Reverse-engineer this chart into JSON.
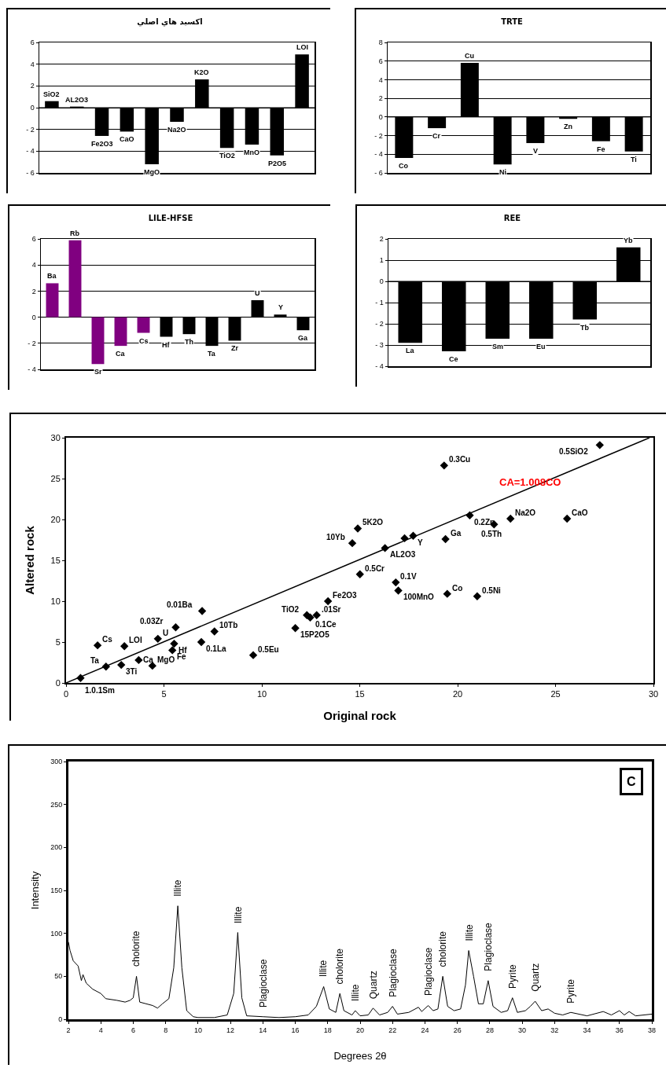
{
  "chart_data": [
    {
      "type": "bar",
      "title": "اكسيد هاي اصلي",
      "categories": [
        "SiO2",
        "AL2O3",
        "Fe2O3",
        "CaO",
        "MgO",
        "Na2O",
        "K2O",
        "TiO2",
        "MnO",
        "P2O5",
        "LOI"
      ],
      "values": [
        0.6,
        0.1,
        -2.6,
        -2.2,
        -5.2,
        -1.3,
        2.6,
        -3.7,
        -3.4,
        -4.4,
        4.9
      ],
      "color": "#000000",
      "ylim": [
        -6,
        6
      ],
      "yticks": [
        {
          "value": -6,
          "label": "- 6"
        },
        {
          "value": -4,
          "label": "- 4"
        },
        {
          "value": -2,
          "label": "- 2"
        },
        0,
        2,
        4,
        6
      ],
      "grid": "y"
    },
    {
      "type": "bar",
      "title": "TRTE",
      "categories": [
        "Co",
        "Cr",
        "Cu",
        "Ni",
        "V",
        "Zn",
        "Fe",
        "Ti"
      ],
      "values": [
        -4.4,
        -1.2,
        5.8,
        -5.1,
        -2.8,
        -0.2,
        -2.6,
        -3.7
      ],
      "color": "#000000",
      "ylim": [
        -6,
        8
      ],
      "yticks": [
        {
          "value": -6,
          "label": "- 6"
        },
        {
          "value": -4,
          "label": "- 4"
        },
        {
          "value": -2,
          "label": "- 2"
        },
        0,
        2,
        4,
        6,
        8
      ],
      "grid": "y"
    },
    {
      "type": "bar",
      "title": "LILE-HFSE",
      "categories": [
        "Ba",
        "Rb",
        "Sr",
        "Ca",
        "Cs",
        "Hf",
        "Th",
        "Ta",
        "Zr",
        "U",
        "Y",
        "Ga"
      ],
      "values": [
        2.6,
        5.9,
        -3.6,
        -2.2,
        -1.2,
        -1.5,
        -1.3,
        -2.2,
        -1.8,
        1.3,
        0.2,
        -1.0
      ],
      "colors": [
        "#800080",
        "#800080",
        "#800080",
        "#800080",
        "#800080",
        "#000000",
        "#000000",
        "#000000",
        "#000000",
        "#000000",
        "#000000",
        "#000000"
      ],
      "ylim": [
        -4,
        6
      ],
      "yticks": [
        {
          "value": -4,
          "label": "- 4"
        },
        {
          "value": -2,
          "label": "- 2"
        },
        0,
        2,
        4,
        6
      ],
      "grid": "y"
    },
    {
      "type": "bar",
      "title": "REE",
      "categories": [
        "La",
        "Ce",
        "Sm",
        "Eu",
        "Tb",
        "Yb"
      ],
      "values": [
        -2.9,
        -3.3,
        -2.7,
        -2.7,
        -1.8,
        1.6
      ],
      "color": "#000000",
      "ylim": [
        -4,
        2
      ],
      "yticks": [
        {
          "value": -4,
          "label": "- 4"
        },
        {
          "value": -3,
          "label": "- 3"
        },
        {
          "value": -2,
          "label": "- 2"
        },
        {
          "value": -1,
          "label": "- 1"
        },
        0,
        1,
        2
      ],
      "grid": "y"
    },
    {
      "type": "scatter",
      "xlabel": "Original rock",
      "ylabel": "Altered rock",
      "xlim": [
        0,
        30
      ],
      "ylim": [
        0,
        30
      ],
      "xticks": [
        0,
        5,
        10,
        15,
        20,
        25,
        30
      ],
      "yticks": [
        0,
        5,
        10,
        15,
        20,
        25,
        30
      ],
      "grid": false,
      "marker": "diamond",
      "series": [
        {
          "type": "scatter",
          "color": "#000000",
          "x": [
            0.74,
            2.04,
            2.82,
            3.71,
            4.41,
            1.61,
            2.98,
            4.69,
            5.6,
            5.52,
            5.43,
            6.91,
            6.95,
            7.58,
            9.56,
            11.71,
            12.3,
            12.47,
            12.8,
            13.38,
            15.01,
            14.62,
            14.9,
            16.29,
            17.29,
            17.73,
            16.84,
            16.97,
            19.38,
            19.31,
            19.47,
            20.62,
            21.0,
            21.86,
            22.7,
            25.59,
            27.26
          ],
          "values": [
            0.6,
            2.0,
            2.2,
            2.8,
            2.1,
            4.6,
            4.5,
            5.4,
            6.8,
            4.8,
            4.0,
            5.0,
            8.8,
            6.3,
            3.4,
            6.7,
            8.3,
            8.0,
            8.3,
            10.0,
            13.3,
            17.1,
            18.9,
            16.5,
            17.7,
            18.0,
            12.3,
            11.3,
            17.6,
            26.6,
            10.9,
            20.5,
            10.6,
            19.4,
            20.1,
            20.1,
            29.1
          ]
        },
        {
          "type": "line",
          "color": "#000000",
          "line_style": "solid",
          "marker": "none",
          "x": [
            0,
            29.8
          ],
          "values": [
            0,
            30
          ]
        }
      ],
      "annotations": [
        {
          "text": "1.0.1Sm",
          "x": 0.74,
          "y": 0.6
        },
        {
          "text": "Ta",
          "x": 2.04,
          "y": 2.0
        },
        {
          "text": "3Ti",
          "x": 2.82,
          "y": 2.2
        },
        {
          "text": "Ca",
          "x": 3.71,
          "y": 2.8
        },
        {
          "text": "MgO",
          "x": 4.41,
          "y": 2.1
        },
        {
          "text": "Cs",
          "x": 1.61,
          "y": 4.6
        },
        {
          "text": "LOI",
          "x": 2.98,
          "y": 4.5
        },
        {
          "text": "U",
          "x": 4.69,
          "y": 5.4
        },
        {
          "text": "0.03Zr",
          "x": 5.6,
          "y": 6.8
        },
        {
          "text": "Hf",
          "x": 5.52,
          "y": 4.8
        },
        {
          "text": "Fe",
          "x": 5.43,
          "y": 4.0
        },
        {
          "text": "0.1La",
          "x": 6.91,
          "y": 5.0
        },
        {
          "text": "0.01Ba",
          "x": 6.95,
          "y": 8.8
        },
        {
          "text": "10Tb",
          "x": 7.58,
          "y": 6.3
        },
        {
          "text": "0.5Eu",
          "x": 9.56,
          "y": 3.4
        },
        {
          "text": "15P2O5",
          "x": 11.71,
          "y": 6.7
        },
        {
          "text": "TiO2",
          "x": 12.3,
          "y": 8.3
        },
        {
          "text": "0.1Ce",
          "x": 12.47,
          "y": 8.0
        },
        {
          "text": ".01Sr",
          "x": 12.8,
          "y": 8.3
        },
        {
          "text": "Fe2O3",
          "x": 13.38,
          "y": 10.0
        },
        {
          "text": "0.5Cr",
          "x": 15.01,
          "y": 13.3
        },
        {
          "text": "10Yb",
          "x": 14.62,
          "y": 17.1
        },
        {
          "text": "5K2O",
          "x": 14.9,
          "y": 18.9
        },
        {
          "text": "AL2O3",
          "x": 16.29,
          "y": 16.5
        },
        {
          "text": "Y",
          "x": 17.73,
          "y": 18.0
        },
        {
          "text": "0.1V",
          "x": 16.84,
          "y": 12.3
        },
        {
          "text": "100MnO",
          "x": 16.97,
          "y": 11.3
        },
        {
          "text": "Ga",
          "x": 19.38,
          "y": 17.6
        },
        {
          "text": "0.3Cu",
          "x": 19.31,
          "y": 26.6
        },
        {
          "text": "Co",
          "x": 19.47,
          "y": 10.9
        },
        {
          "text": "0.2Zn",
          "x": 20.62,
          "y": 20.5
        },
        {
          "text": "0.5Ni",
          "x": 21.0,
          "y": 10.6
        },
        {
          "text": "0.5Th",
          "x": 21.86,
          "y": 19.4
        },
        {
          "text": "Na2O",
          "x": 22.7,
          "y": 20.1
        },
        {
          "text": "CaO",
          "x": 25.59,
          "y": 20.1
        },
        {
          "text": "0.5SiO2",
          "x": 27.26,
          "y": 29.1
        },
        "CA=1.008CO"
      ]
    },
    {
      "type": "line",
      "xlabel": "Degrees 2θ",
      "ylabel": "Intensity",
      "xlim": [
        2,
        38
      ],
      "ylim": [
        0,
        300
      ],
      "xticks": [
        2,
        4,
        6,
        8,
        10,
        12,
        14,
        16,
        18,
        20,
        22,
        24,
        26,
        28,
        30,
        32,
        34,
        36,
        38
      ],
      "yticks": [
        0,
        50,
        100,
        150,
        200,
        250,
        300
      ],
      "grid": false,
      "marker": "none",
      "line_style": "solid",
      "x": [
        2,
        2.1,
        2.3,
        2.6,
        2.8,
        2.9,
        3.1,
        3.5,
        4,
        4.3,
        5,
        5.5,
        5.8,
        6.0,
        6.2,
        6.4,
        6.8,
        7.2,
        7.5,
        7.8,
        8.2,
        8.5,
        8.75,
        9.0,
        9.3,
        9.7,
        10,
        11,
        11.8,
        12.2,
        12.45,
        12.7,
        13,
        14,
        15,
        16,
        16.8,
        17.3,
        17.75,
        18.1,
        18.5,
        18.75,
        19,
        19.5,
        19.7,
        20,
        20.5,
        20.8,
        21.2,
        21.7,
        22,
        22.3,
        23,
        23.6,
        23.8,
        24.2,
        24.5,
        24.8,
        25.1,
        25.4,
        25.8,
        26.2,
        26.5,
        26.7,
        27,
        27.3,
        27.6,
        27.9,
        28.2,
        28.7,
        29.1,
        29.4,
        29.7,
        30.2,
        30.5,
        30.8,
        31.2,
        31.6,
        32,
        32.5,
        33,
        34,
        35,
        35.5,
        36,
        36.3,
        36.6,
        37,
        38
      ],
      "series": [
        {
          "color": "#000000",
          "values": [
            90,
            80,
            68,
            62,
            45,
            52,
            42,
            35,
            30,
            24,
            22,
            20,
            22,
            25,
            50,
            20,
            18,
            16,
            13,
            18,
            24,
            60,
            132,
            60,
            10,
            3,
            2,
            2,
            5,
            30,
            101,
            25,
            4,
            3,
            2,
            3,
            5,
            15,
            38,
            12,
            8,
            30,
            10,
            5,
            10,
            4,
            5,
            13,
            5,
            8,
            15,
            6,
            8,
            14,
            9,
            16,
            10,
            12,
            50,
            15,
            10,
            12,
            40,
            80,
            50,
            18,
            18,
            45,
            15,
            8,
            10,
            25,
            8,
            10,
            15,
            21,
            10,
            12,
            7,
            5,
            8,
            4,
            9,
            5,
            10,
            5,
            9,
            4,
            6
          ]
        }
      ],
      "annotations": [
        {
          "text": "cholorite",
          "x": 6.2,
          "y": 50
        },
        {
          "text": "Illite",
          "x": 8.75,
          "y": 132
        },
        {
          "text": "Illite",
          "x": 12.45,
          "y": 101
        },
        {
          "text": "Plagioclase",
          "x": 14,
          "y": 3
        },
        {
          "text": "Illite",
          "x": 17.75,
          "y": 38
        },
        {
          "text": "cholorite",
          "x": 18.75,
          "y": 30
        },
        {
          "text": "Illite",
          "x": 19.7,
          "y": 10
        },
        {
          "text": "Quartz",
          "x": 20.8,
          "y": 13
        },
        {
          "text": "Plagioclase",
          "x": 22,
          "y": 15
        },
        {
          "text": "Plagioclase",
          "x": 24.2,
          "y": 16
        },
        {
          "text": "cholorite",
          "x": 25.1,
          "y": 50
        },
        {
          "text": "Illite",
          "x": 26.7,
          "y": 80
        },
        {
          "text": "Plagioclase",
          "x": 27.9,
          "y": 45
        },
        {
          "text": "Pyrite",
          "x": 29.4,
          "y": 25
        },
        {
          "text": "Quartz",
          "x": 30.8,
          "y": 21
        },
        {
          "text": "Pyrite",
          "x": 33,
          "y": 8
        },
        "C"
      ]
    }
  ]
}
